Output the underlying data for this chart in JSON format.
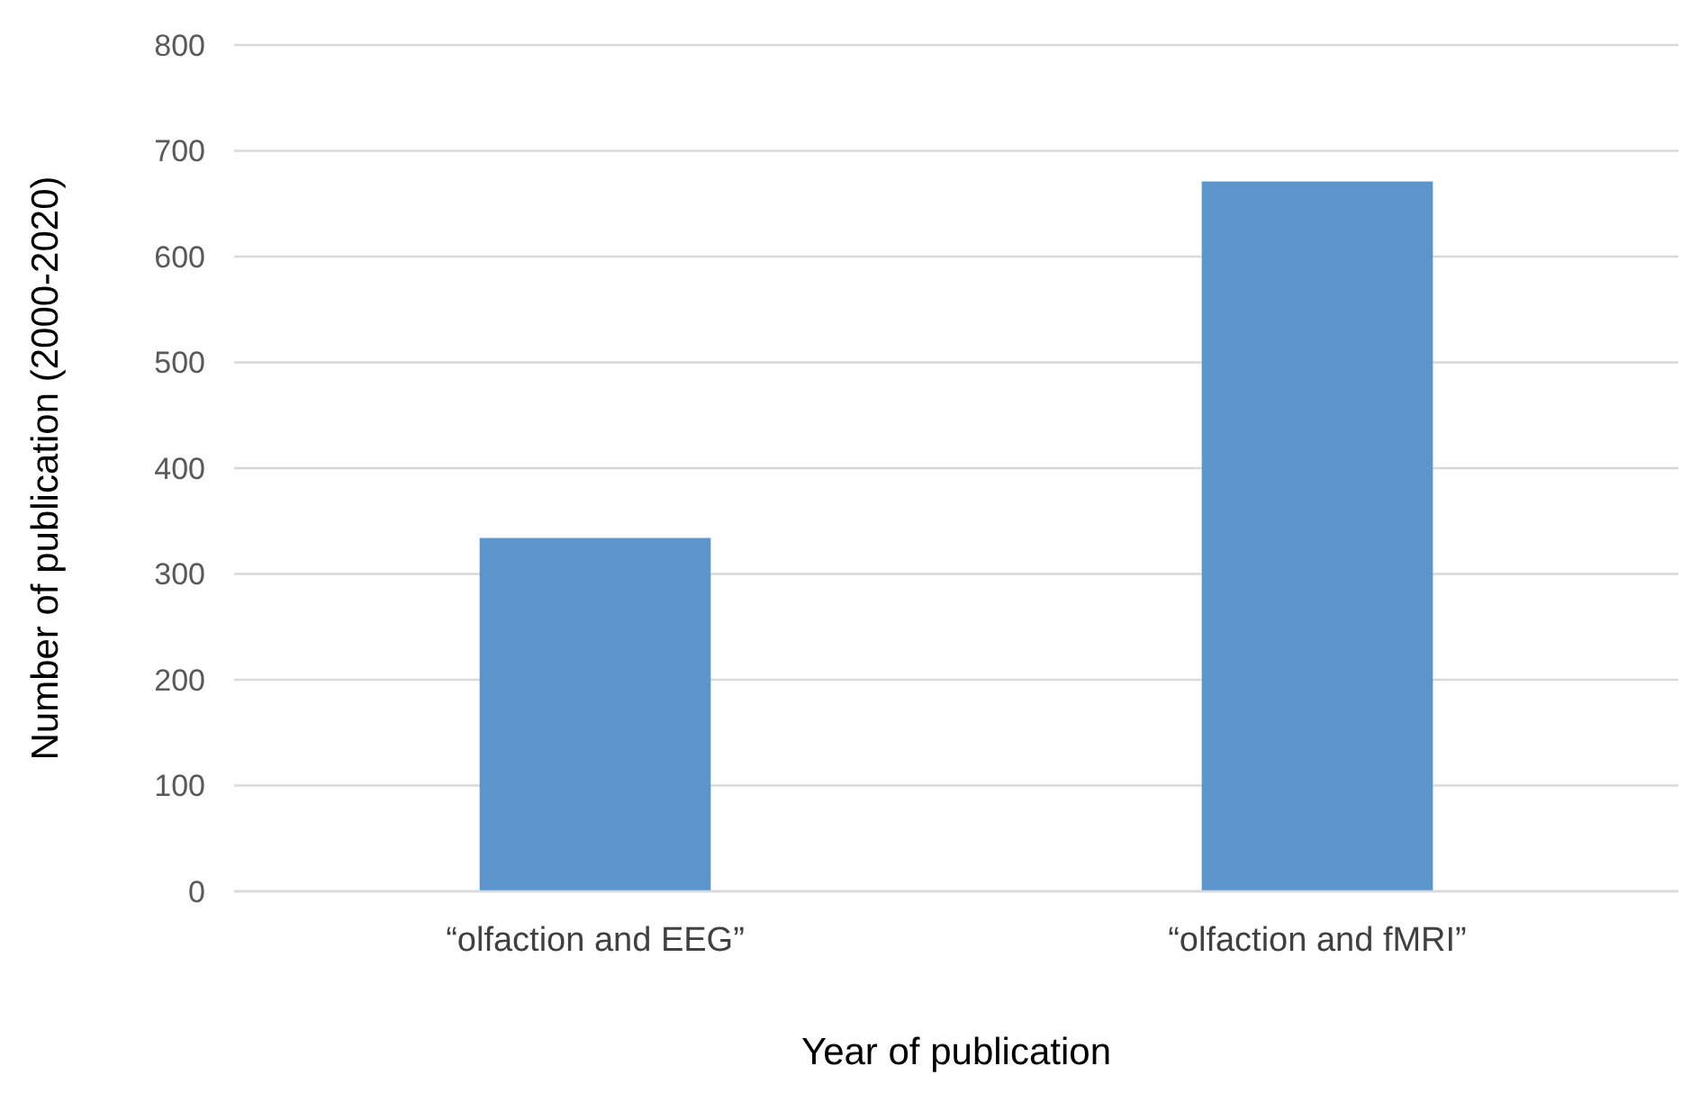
{
  "chart_data": {
    "type": "bar",
    "categories": [
      "“olfaction and EEG”",
      "“olfaction and fMRI”"
    ],
    "values": [
      334,
      671
    ],
    "color": "#5b95cc",
    "ylim": [
      0,
      800
    ],
    "yticks": [
      0,
      100,
      200,
      300,
      400,
      500,
      600,
      700,
      800
    ],
    "grid": "y",
    "xlabel": "Year of publication",
    "ylabel": "Number of publication  (2000-2020)"
  }
}
